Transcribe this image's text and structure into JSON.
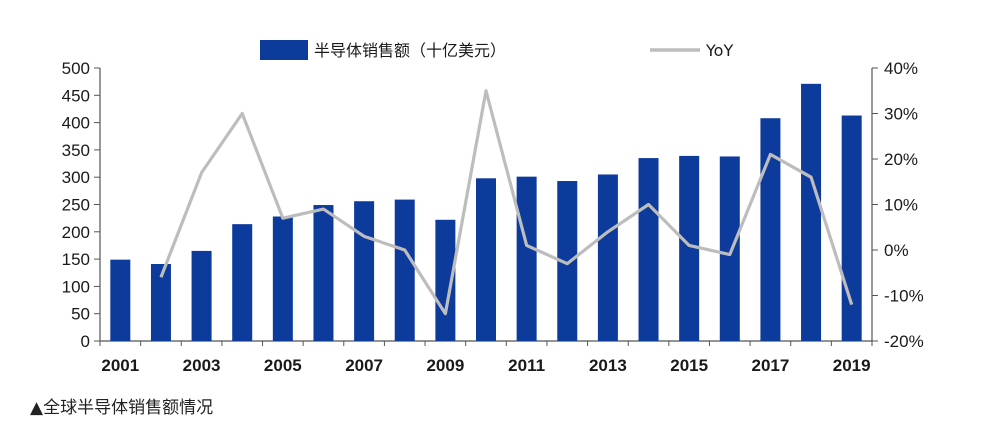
{
  "chart_data": {
    "type": "bar",
    "categories": [
      "2001",
      "2002",
      "2003",
      "2004",
      "2005",
      "2006",
      "2007",
      "2008",
      "2009",
      "2010",
      "2011",
      "2012",
      "2013",
      "2014",
      "2015",
      "2016",
      "2017",
      "2018",
      "2019"
    ],
    "x_tick_labels": [
      "2001",
      "2003",
      "2005",
      "2007",
      "2009",
      "2011",
      "2013",
      "2015",
      "2017",
      "2019"
    ],
    "series": [
      {
        "name": "半导体销售额（十亿美元）",
        "type": "bar",
        "axis": "left",
        "color": "#0c3b9c",
        "values": [
          149,
          141,
          165,
          214,
          228,
          249,
          256,
          259,
          222,
          298,
          301,
          293,
          305,
          335,
          339,
          338,
          408,
          471,
          413
        ]
      },
      {
        "name": "YoY",
        "type": "line",
        "axis": "right",
        "color": "#bdbdbd",
        "values": [
          null,
          -6,
          17,
          30,
          7,
          9,
          3,
          0,
          -14,
          35,
          1,
          -3,
          4,
          10,
          1,
          -1,
          21,
          16,
          -12
        ]
      }
    ],
    "y_left": {
      "range": [
        0,
        500
      ],
      "ticks": [
        "0",
        "50",
        "100",
        "150",
        "200",
        "250",
        "300",
        "350",
        "400",
        "450",
        "500"
      ]
    },
    "y_right": {
      "range": [
        -20,
        40
      ],
      "ticks": [
        "-20%",
        "-10%",
        "0%",
        "10%",
        "20%",
        "30%",
        "40%"
      ]
    },
    "legend_position": "top",
    "grid": false
  },
  "caption": "▲全球半导体销售额情况"
}
